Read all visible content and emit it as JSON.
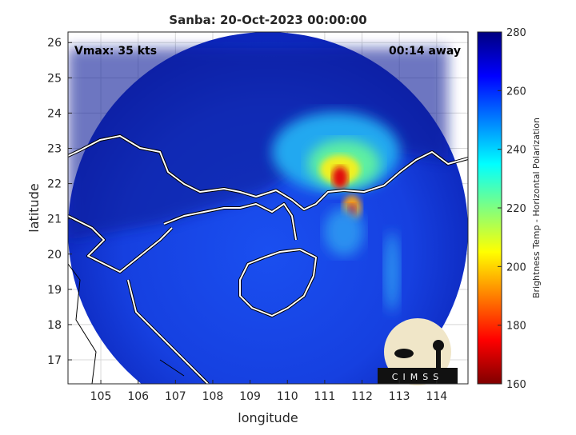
{
  "chart_data": {
    "type": "map",
    "title": "Sanba: 20-Oct-2023 00:00:00",
    "annotations": {
      "intensity": "Vmax: 35 kts",
      "time_offset": "00:14 away"
    },
    "xlabel": "longitude",
    "ylabel": "latitude",
    "xlim": [
      104.12,
      114.84
    ],
    "ylim": [
      16.32,
      26.3
    ],
    "xticks": [
      105,
      106,
      107,
      108,
      109,
      110,
      111,
      112,
      113,
      114
    ],
    "yticks": [
      17,
      18,
      19,
      20,
      21,
      22,
      23,
      24,
      25,
      26
    ],
    "grid": true,
    "colorbar": {
      "label": "Brightness Temp - Horizontal Polarization",
      "lim": [
        160,
        280
      ],
      "ticks": [
        160,
        180,
        200,
        220,
        240,
        260,
        280
      ]
    },
    "logo": "CIMSS"
  }
}
